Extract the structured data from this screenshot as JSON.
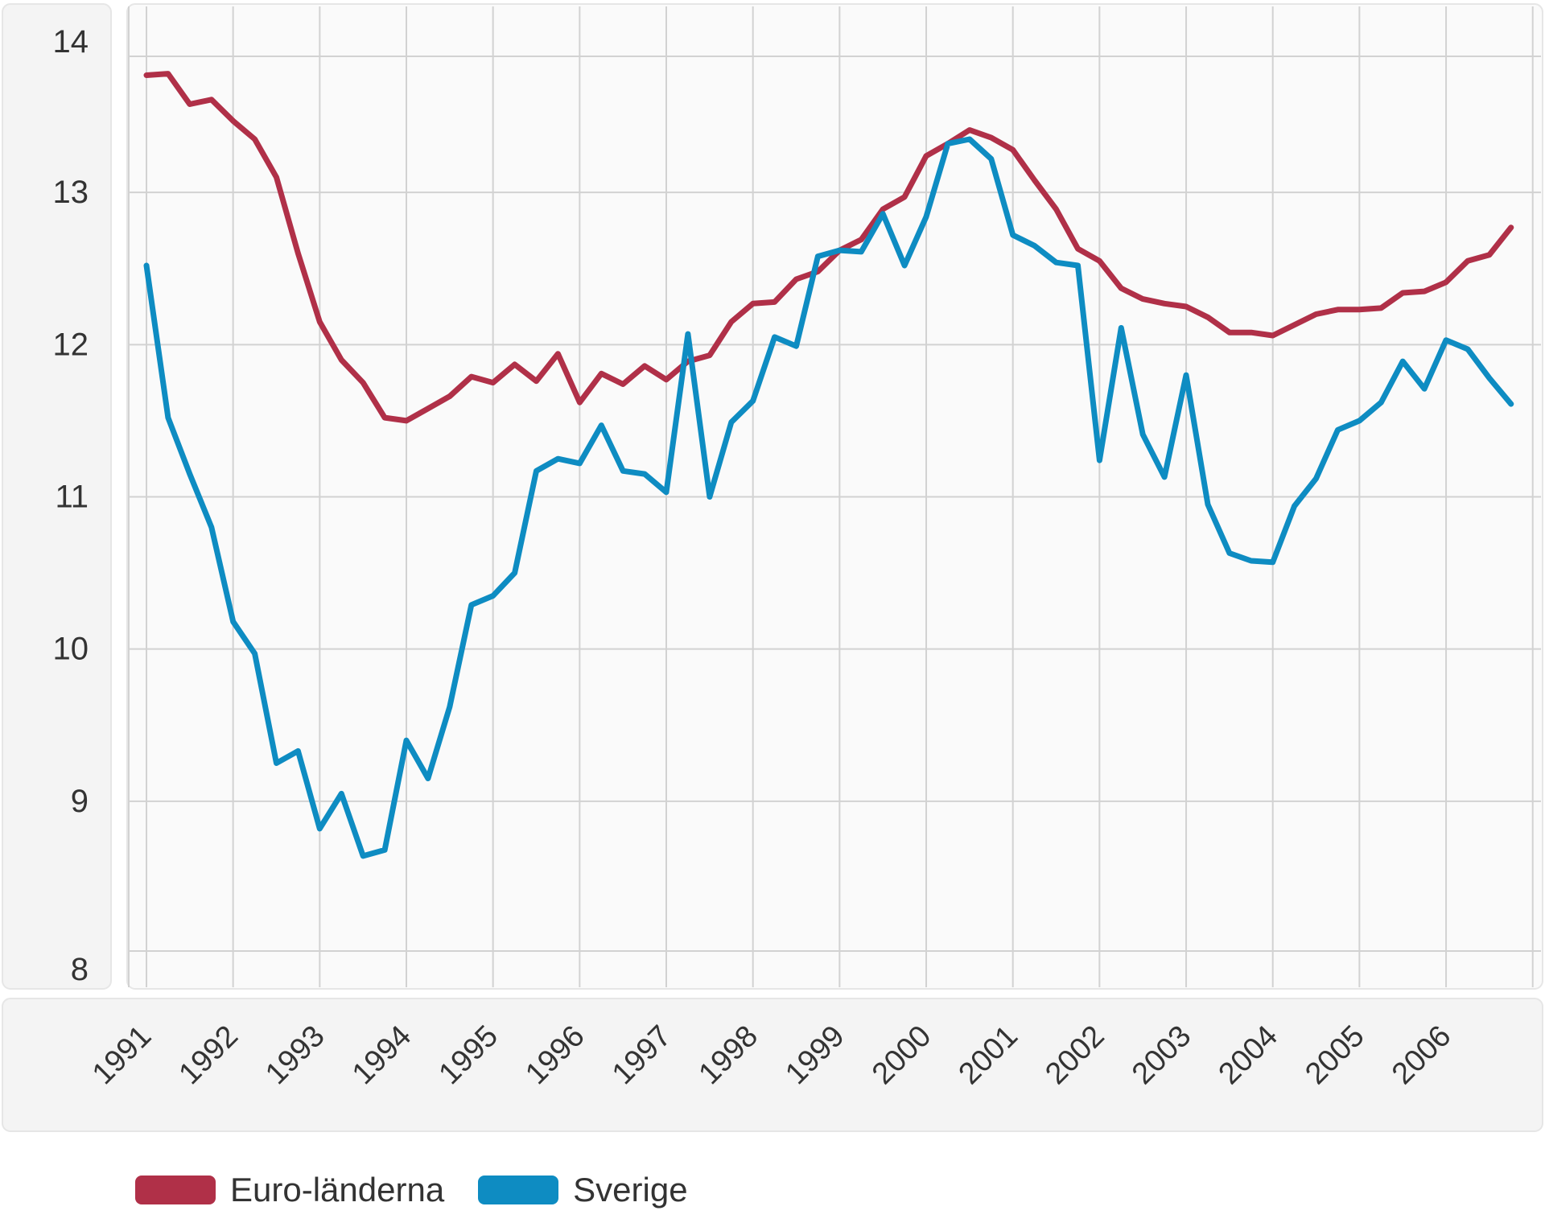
{
  "chart_data": {
    "type": "line",
    "title": "",
    "xlabel": "",
    "ylabel": "",
    "ylim": [
      8,
      14
    ],
    "xlim": [
      1991,
      2006.75
    ],
    "y_ticks": [
      "8",
      "9",
      "10",
      "11",
      "12",
      "13",
      "14"
    ],
    "x_ticks": [
      "1991",
      "1992",
      "1993",
      "1994",
      "1995",
      "1996",
      "1997",
      "1998",
      "1999",
      "2000",
      "2001",
      "2002",
      "2003",
      "2004",
      "2005",
      "2006"
    ],
    "grid": true,
    "legend_position": "bottom-left",
    "series": [
      {
        "name": "Euro-länderna",
        "color": "#b03048",
        "x": [
          1991.0,
          1991.25,
          1991.5,
          1991.75,
          1992.0,
          1992.25,
          1992.5,
          1992.75,
          1993.0,
          1993.25,
          1993.5,
          1993.75,
          1994.0,
          1994.25,
          1994.5,
          1994.75,
          1995.0,
          1995.25,
          1995.5,
          1995.75,
          1996.0,
          1996.25,
          1996.5,
          1996.75,
          1997.0,
          1997.25,
          1997.5,
          1997.75,
          1998.0,
          1998.25,
          1998.5,
          1998.75,
          1999.0,
          1999.25,
          1999.5,
          1999.75,
          2000.0,
          2000.25,
          2000.5,
          2000.75,
          2001.0,
          2001.25,
          2001.5,
          2001.75,
          2002.0,
          2002.25,
          2002.5,
          2002.75,
          2003.0,
          2003.25,
          2003.5,
          2003.75,
          2004.0,
          2004.25,
          2004.5,
          2004.75,
          2005.0,
          2005.25,
          2005.5,
          2005.75,
          2006.0,
          2006.25,
          2006.5,
          2006.75
        ],
        "values": [
          13.77,
          13.78,
          13.58,
          13.61,
          13.47,
          13.35,
          13.1,
          12.6,
          12.15,
          11.9,
          11.75,
          11.52,
          11.5,
          11.58,
          11.66,
          11.79,
          11.75,
          11.87,
          11.76,
          11.94,
          11.62,
          11.81,
          11.74,
          11.86,
          11.77,
          11.89,
          11.93,
          12.15,
          12.27,
          12.28,
          12.43,
          12.48,
          12.62,
          12.69,
          12.89,
          12.97,
          13.24,
          13.32,
          13.41,
          13.36,
          13.28,
          13.08,
          12.89,
          12.63,
          12.55,
          12.37,
          12.3,
          12.27,
          12.25,
          12.18,
          12.08,
          12.08,
          12.06,
          12.13,
          12.2,
          12.23,
          12.23,
          12.24,
          12.34,
          12.35,
          12.41,
          12.55,
          12.59,
          12.77
        ]
      },
      {
        "name": "Sverige",
        "color": "#0e8cc2",
        "x": [
          1991.0,
          1991.25,
          1991.5,
          1991.75,
          1992.0,
          1992.25,
          1992.5,
          1992.75,
          1993.0,
          1993.25,
          1993.5,
          1993.75,
          1994.0,
          1994.25,
          1994.5,
          1994.75,
          1995.0,
          1995.25,
          1995.5,
          1995.75,
          1996.0,
          1996.25,
          1996.5,
          1996.75,
          1997.0,
          1997.25,
          1997.5,
          1997.75,
          1998.0,
          1998.25,
          1998.5,
          1998.75,
          1999.0,
          1999.25,
          1999.5,
          1999.75,
          2000.0,
          2000.25,
          2000.5,
          2000.75,
          2001.0,
          2001.25,
          2001.5,
          2001.75,
          2002.0,
          2002.25,
          2002.5,
          2002.75,
          2003.0,
          2003.25,
          2003.5,
          2003.75,
          2004.0,
          2004.25,
          2004.5,
          2004.75,
          2005.0,
          2005.25,
          2005.5,
          2005.75,
          2006.0,
          2006.25,
          2006.5,
          2006.75
        ],
        "values": [
          12.52,
          11.52,
          11.15,
          10.8,
          10.18,
          9.97,
          9.25,
          9.33,
          8.82,
          9.05,
          8.64,
          8.68,
          9.4,
          9.15,
          9.62,
          10.29,
          10.35,
          10.5,
          11.17,
          11.25,
          11.22,
          11.47,
          11.17,
          11.15,
          11.03,
          12.07,
          11.0,
          11.49,
          11.63,
          12.05,
          11.99,
          12.58,
          12.62,
          12.61,
          12.86,
          12.52,
          12.84,
          13.32,
          13.35,
          13.22,
          12.72,
          12.65,
          12.54,
          12.52,
          11.24,
          12.11,
          11.41,
          11.13,
          11.8,
          10.95,
          10.63,
          10.58,
          10.57,
          10.94,
          11.12,
          11.44,
          11.5,
          11.62,
          11.89,
          11.71,
          12.03,
          11.97,
          11.78,
          11.61
        ]
      }
    ]
  }
}
